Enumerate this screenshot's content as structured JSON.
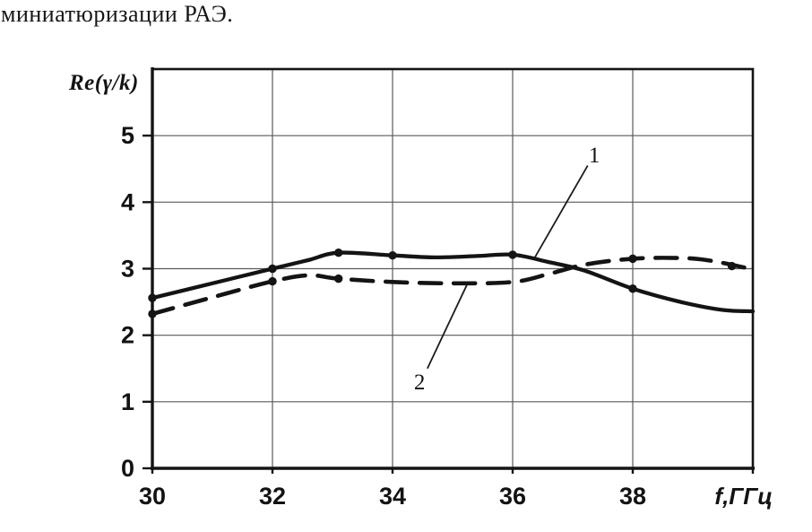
{
  "page": {
    "top_text": "миниатюризации РАЭ."
  },
  "chart_data": {
    "type": "line",
    "title": "Re(γ/k)",
    "xlabel": "f,ГГц",
    "ylabel": "Re(γ/k)",
    "xlim": [
      30,
      40
    ],
    "ylim": [
      0,
      6
    ],
    "x_ticks": [
      30,
      32,
      34,
      36,
      38
    ],
    "y_ticks": [
      0,
      1,
      2,
      3,
      4,
      5
    ],
    "grid": true,
    "legend_position": "none",
    "line_color": "#141414",
    "grid_color": "#5a5a5a",
    "series": [
      {
        "name": "1",
        "line_style": "solid",
        "x": [
          30,
          31,
          32,
          32.6,
          33.1,
          34,
          34.7,
          35.4,
          36,
          36.6,
          37.2,
          38,
          38.8,
          39.5,
          40
        ],
        "y": [
          2.56,
          2.78,
          3.0,
          3.13,
          3.24,
          3.2,
          3.17,
          3.19,
          3.21,
          3.1,
          2.97,
          2.7,
          2.5,
          2.38,
          2.36
        ],
        "markers": [
          [
            30,
            2.56
          ],
          [
            32,
            3.0
          ],
          [
            33.1,
            3.24
          ],
          [
            34,
            3.2
          ],
          [
            36,
            3.21
          ],
          [
            38,
            2.7
          ]
        ]
      },
      {
        "name": "2",
        "line_style": "dashed",
        "x": [
          30,
          31,
          32,
          32.6,
          33.1,
          34,
          35,
          36,
          36.6,
          37.2,
          38,
          38.8,
          39.3,
          39.9
        ],
        "y": [
          2.32,
          2.57,
          2.81,
          2.9,
          2.85,
          2.8,
          2.78,
          2.8,
          2.92,
          3.06,
          3.15,
          3.16,
          3.12,
          3.01
        ],
        "markers": [
          [
            30,
            2.32
          ],
          [
            32,
            2.81
          ],
          [
            33.1,
            2.85
          ],
          [
            38,
            3.15
          ],
          [
            39.65,
            3.04
          ]
        ]
      }
    ],
    "annotations": [
      {
        "text": "1",
        "text_xy": [
          37.36,
          4.72
        ],
        "line_from": [
          37.25,
          4.55
        ],
        "line_to": [
          36.37,
          3.17
        ]
      },
      {
        "text": "2",
        "text_xy": [
          34.45,
          1.31
        ],
        "line_from": [
          34.58,
          1.5
        ],
        "line_to": [
          35.25,
          2.78
        ]
      }
    ]
  }
}
